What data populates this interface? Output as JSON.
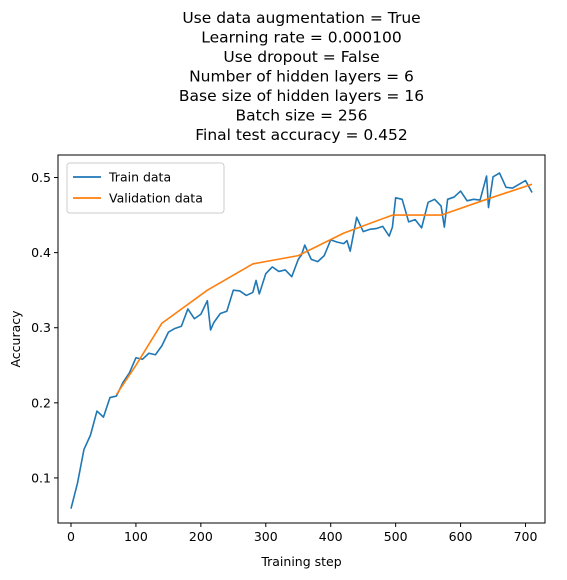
{
  "chart_data": {
    "type": "line",
    "title_lines": [
      "Use data augmentation = True",
      "Learning rate = 0.000100",
      "Use dropout = False",
      "Number of hidden layers = 6",
      "Base size of hidden layers = 16",
      "Batch size = 256",
      "Final test accuracy = 0.452"
    ],
    "xlabel": "Training step",
    "ylabel": "Accuracy",
    "xlim": [
      -20,
      730
    ],
    "ylim": [
      0.04,
      0.53
    ],
    "xticks": [
      0,
      100,
      200,
      300,
      400,
      500,
      600,
      700
    ],
    "yticks": [
      0.1,
      0.2,
      0.3,
      0.4,
      0.5
    ],
    "grid": false,
    "legend_position": "upper-left",
    "series": [
      {
        "name": "Train data",
        "color": "#1f77b4",
        "x": [
          0,
          10,
          20,
          30,
          40,
          50,
          60,
          70,
          80,
          90,
          100,
          110,
          120,
          130,
          140,
          150,
          160,
          170,
          180,
          190,
          200,
          210,
          215,
          220,
          230,
          240,
          250,
          260,
          270,
          280,
          285,
          290,
          300,
          310,
          320,
          330,
          340,
          350,
          355,
          360,
          370,
          380,
          390,
          400,
          410,
          420,
          425,
          430,
          440,
          450,
          460,
          470,
          480,
          490,
          495,
          500,
          510,
          520,
          530,
          540,
          550,
          560,
          570,
          575,
          580,
          590,
          600,
          610,
          620,
          630,
          640,
          643,
          650,
          660,
          670,
          680,
          690,
          700,
          710
        ],
        "values": [
          0.059,
          0.093,
          0.138,
          0.157,
          0.189,
          0.181,
          0.207,
          0.209,
          0.227,
          0.24,
          0.26,
          0.258,
          0.266,
          0.264,
          0.276,
          0.294,
          0.299,
          0.302,
          0.325,
          0.312,
          0.318,
          0.336,
          0.297,
          0.307,
          0.319,
          0.322,
          0.35,
          0.349,
          0.343,
          0.347,
          0.363,
          0.345,
          0.372,
          0.381,
          0.375,
          0.377,
          0.368,
          0.391,
          0.397,
          0.41,
          0.391,
          0.388,
          0.396,
          0.417,
          0.414,
          0.412,
          0.416,
          0.402,
          0.447,
          0.428,
          0.431,
          0.432,
          0.435,
          0.422,
          0.434,
          0.473,
          0.471,
          0.441,
          0.444,
          0.433,
          0.467,
          0.471,
          0.462,
          0.434,
          0.471,
          0.474,
          0.482,
          0.469,
          0.471,
          0.47,
          0.502,
          0.46,
          0.501,
          0.506,
          0.487,
          0.486,
          0.491,
          0.496,
          0.48
        ]
      },
      {
        "name": "Validation data",
        "color": "#ff7f0e",
        "x": [
          70,
          100,
          140,
          210,
          280,
          350,
          420,
          495,
          570,
          640,
          710
        ],
        "values": [
          0.211,
          0.25,
          0.306,
          0.35,
          0.385,
          0.396,
          0.426,
          0.45,
          0.45,
          0.471,
          0.491
        ]
      }
    ]
  }
}
